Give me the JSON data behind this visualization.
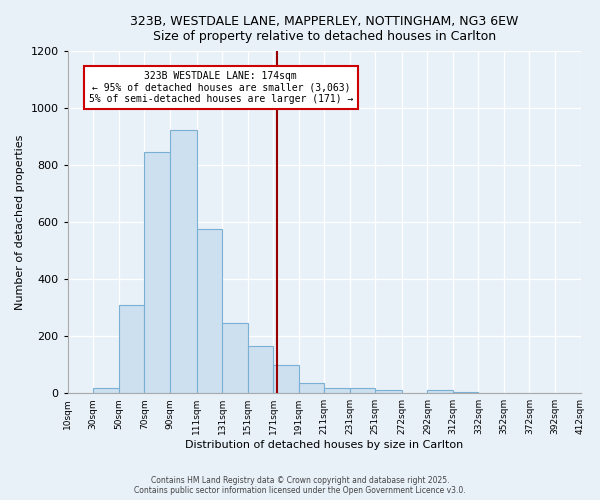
{
  "title_line1": "323B, WESTDALE LANE, MAPPERLEY, NOTTINGHAM, NG3 6EW",
  "title_line2": "Size of property relative to detached houses in Carlton",
  "xlabel": "Distribution of detached houses by size in Carlton",
  "ylabel": "Number of detached properties",
  "bar_color": "#cce0f0",
  "bar_edge_color": "#7ab0d4",
  "bg_color": "#e8f0f8",
  "grid_color": "#ffffff",
  "vline_x": 174,
  "vline_color": "#990000",
  "annotation_text": "323B WESTDALE LANE: 174sqm\n← 95% of detached houses are smaller (3,063)\n5% of semi-detached houses are larger (171) →",
  "annotation_box_color": "#ffffff",
  "annotation_box_edge": "#cc0000",
  "bins": [
    10,
    30,
    50,
    70,
    90,
    111,
    131,
    151,
    171,
    191,
    211,
    231,
    251,
    272,
    292,
    312,
    332,
    352,
    372,
    392,
    412
  ],
  "values": [
    0,
    20,
    310,
    845,
    925,
    575,
    245,
    165,
    100,
    35,
    20,
    18,
    12,
    0,
    10,
    5,
    0,
    0,
    0,
    0
  ],
  "ylim": [
    0,
    1200
  ],
  "yticks": [
    0,
    200,
    400,
    600,
    800,
    1000,
    1200
  ],
  "footer_line1": "Contains HM Land Registry data © Crown copyright and database right 2025.",
  "footer_line2": "Contains public sector information licensed under the Open Government Licence v3.0."
}
